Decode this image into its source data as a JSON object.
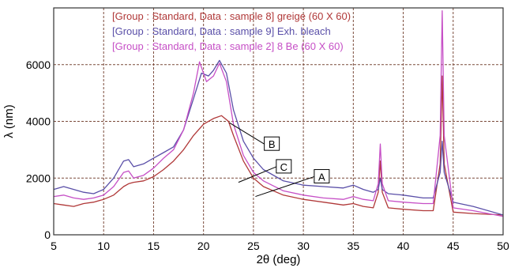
{
  "chart_data": {
    "type": "line",
    "xlabel": "2θ (deg)",
    "ylabel": "λ (nm)",
    "xlim": [
      5,
      50
    ],
    "ylim": [
      0,
      8000
    ],
    "x_ticks": [
      5,
      10,
      15,
      20,
      25,
      30,
      35,
      40,
      45,
      50
    ],
    "y_ticks": [
      0,
      2000,
      4000,
      6000
    ],
    "grid": true,
    "legend_placement": "top-left",
    "series": [
      {
        "name": "[Group : Standard, Data : sample 8] greige (60 X 60)",
        "color": "#b03838",
        "points": [
          [
            5,
            1100
          ],
          [
            6,
            1050
          ],
          [
            7,
            1000
          ],
          [
            8,
            1100
          ],
          [
            9,
            1150
          ],
          [
            10,
            1250
          ],
          [
            11,
            1400
          ],
          [
            12,
            1700
          ],
          [
            12.5,
            1800
          ],
          [
            13,
            1850
          ],
          [
            14,
            1900
          ],
          [
            15,
            2050
          ],
          [
            16,
            2300
          ],
          [
            17,
            2600
          ],
          [
            18,
            3000
          ],
          [
            19,
            3500
          ],
          [
            20,
            3900
          ],
          [
            21,
            4100
          ],
          [
            21.8,
            4200
          ],
          [
            22.5,
            4000
          ],
          [
            23,
            3500
          ],
          [
            24,
            2600
          ],
          [
            25,
            2000
          ],
          [
            26,
            1700
          ],
          [
            28,
            1400
          ],
          [
            30,
            1250
          ],
          [
            32,
            1150
          ],
          [
            34,
            1050
          ],
          [
            35,
            1100
          ],
          [
            36,
            1000
          ],
          [
            37,
            950
          ],
          [
            37.5,
            1500
          ],
          [
            37.7,
            2600
          ],
          [
            37.9,
            1500
          ],
          [
            38.5,
            950
          ],
          [
            40,
            900
          ],
          [
            42,
            850
          ],
          [
            43,
            850
          ],
          [
            43.7,
            2500
          ],
          [
            43.9,
            5600
          ],
          [
            44.1,
            2500
          ],
          [
            45,
            800
          ],
          [
            47,
            750
          ],
          [
            50,
            700
          ]
        ]
      },
      {
        "name": "[Group : Standard, Data : sample 9] Exh. bleach",
        "color": "#5a4fa8",
        "points": [
          [
            5,
            1600
          ],
          [
            6,
            1700
          ],
          [
            7,
            1600
          ],
          [
            8,
            1500
          ],
          [
            9,
            1450
          ],
          [
            10,
            1600
          ],
          [
            11,
            2000
          ],
          [
            12,
            2600
          ],
          [
            12.5,
            2650
          ],
          [
            13,
            2400
          ],
          [
            14,
            2500
          ],
          [
            15,
            2700
          ],
          [
            16,
            2900
          ],
          [
            17,
            3100
          ],
          [
            18,
            3700
          ],
          [
            19,
            4800
          ],
          [
            19.8,
            5700
          ],
          [
            20.5,
            5600
          ],
          [
            21,
            5800
          ],
          [
            21.6,
            6150
          ],
          [
            22.3,
            5700
          ],
          [
            23,
            4400
          ],
          [
            24,
            3300
          ],
          [
            25,
            2700
          ],
          [
            26,
            2300
          ],
          [
            28,
            1900
          ],
          [
            30,
            1750
          ],
          [
            32,
            1700
          ],
          [
            34,
            1650
          ],
          [
            35,
            1750
          ],
          [
            36,
            1600
          ],
          [
            37,
            1500
          ],
          [
            37.5,
            1600
          ],
          [
            37.7,
            2000
          ],
          [
            37.9,
            1600
          ],
          [
            38.5,
            1450
          ],
          [
            40,
            1400
          ],
          [
            42,
            1300
          ],
          [
            43,
            1300
          ],
          [
            43.7,
            2200
          ],
          [
            43.9,
            3300
          ],
          [
            44.1,
            2200
          ],
          [
            45,
            1150
          ],
          [
            47,
            1000
          ],
          [
            50,
            700
          ]
        ]
      },
      {
        "name": "[Group : Standard, Data : sample 2] 8 Be (60 X 60)",
        "color": "#c64fc6",
        "points": [
          [
            5,
            1350
          ],
          [
            6,
            1400
          ],
          [
            7,
            1300
          ],
          [
            8,
            1250
          ],
          [
            9,
            1300
          ],
          [
            10,
            1400
          ],
          [
            11,
            1700
          ],
          [
            12,
            2200
          ],
          [
            12.5,
            2250
          ],
          [
            13,
            2000
          ],
          [
            14,
            2100
          ],
          [
            15,
            2350
          ],
          [
            16,
            2700
          ],
          [
            17,
            3000
          ],
          [
            18,
            3700
          ],
          [
            19,
            5000
          ],
          [
            19.6,
            6100
          ],
          [
            20.3,
            5400
          ],
          [
            21,
            5600
          ],
          [
            21.6,
            6050
          ],
          [
            22.3,
            5400
          ],
          [
            23,
            3900
          ],
          [
            24,
            2800
          ],
          [
            25,
            2200
          ],
          [
            26,
            1900
          ],
          [
            28,
            1550
          ],
          [
            30,
            1400
          ],
          [
            32,
            1300
          ],
          [
            34,
            1250
          ],
          [
            35,
            1350
          ],
          [
            36,
            1250
          ],
          [
            37,
            1200
          ],
          [
            37.5,
            1800
          ],
          [
            37.7,
            3200
          ],
          [
            37.9,
            1800
          ],
          [
            38.5,
            1200
          ],
          [
            40,
            1150
          ],
          [
            42,
            1100
          ],
          [
            43,
            1100
          ],
          [
            43.7,
            3500
          ],
          [
            43.9,
            7900
          ],
          [
            44.1,
            3500
          ],
          [
            45,
            950
          ],
          [
            47,
            850
          ],
          [
            50,
            650
          ]
        ]
      }
    ],
    "annotations": [
      {
        "text": "B",
        "x": 26.8,
        "y": 3200,
        "line_to": [
          22.6,
          3950
        ]
      },
      {
        "text": "C",
        "x": 28.0,
        "y": 2400,
        "line_to": [
          23.5,
          1850
        ]
      },
      {
        "text": "A",
        "x": 31.8,
        "y": 2050,
        "line_to": [
          25.2,
          1350
        ]
      }
    ]
  }
}
